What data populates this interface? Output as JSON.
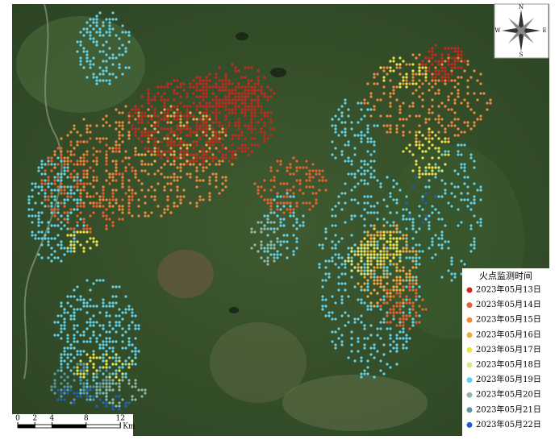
{
  "legend": {
    "title": "火点监测时间",
    "items": [
      {
        "label": "2023年05月13日",
        "color": "#c8281e"
      },
      {
        "label": "2023年05月14日",
        "color": "#e8612c"
      },
      {
        "label": "2023年05月15日",
        "color": "#ee8a3c"
      },
      {
        "label": "2023年05月16日",
        "color": "#f2a944"
      },
      {
        "label": "2023年05月17日",
        "color": "#f0e04a"
      },
      {
        "label": "2023年05月18日",
        "color": "#dbe888"
      },
      {
        "label": "2023年05月19日",
        "color": "#62d2ec"
      },
      {
        "label": "2023年05月20日",
        "color": "#8fb8a8"
      },
      {
        "label": "2023年05月21日",
        "color": "#5a9aa8"
      },
      {
        "label": "2023年05月22日",
        "color": "#1f5fc8"
      }
    ]
  },
  "scale_bar": {
    "ticks": [
      0,
      2,
      4,
      8,
      12
    ],
    "unit": "Km"
  },
  "compass": {
    "north": "N",
    "south": "S",
    "east": "E",
    "west": "W"
  }
}
